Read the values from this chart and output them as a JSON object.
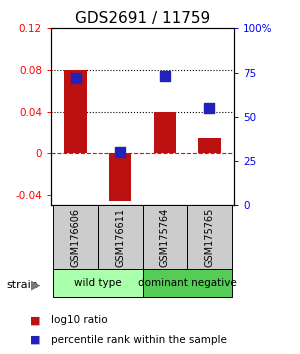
{
  "title": "GDS2691 / 11759",
  "samples": [
    "GSM176606",
    "GSM176611",
    "GSM175764",
    "GSM175765"
  ],
  "log10_ratio": [
    0.08,
    -0.046,
    0.04,
    0.015
  ],
  "percentile_rank": [
    0.72,
    0.3,
    0.73,
    0.55
  ],
  "groups": [
    {
      "label": "wild type",
      "color": "#aaffaa"
    },
    {
      "label": "dominant negative",
      "color": "#55cc55"
    }
  ],
  "group_sample_counts": [
    2,
    2
  ],
  "ylim_left": [
    -0.05,
    0.12
  ],
  "ylim_right": [
    0.0,
    1.0
  ],
  "yticks_left": [
    -0.04,
    0.0,
    0.04,
    0.08,
    0.12
  ],
  "ytick_labels_left": [
    "-0.04",
    "0",
    "0.04",
    "0.08",
    "0.12"
  ],
  "yticks_right": [
    0.0,
    0.25,
    0.5,
    0.75,
    1.0
  ],
  "ytick_labels_right": [
    "0",
    "25",
    "50",
    "75",
    "100%"
  ],
  "hlines_dotted": [
    0.04,
    0.08
  ],
  "hline_dashed": 0.0,
  "bar_color": "#bb1111",
  "dot_color": "#2222bb",
  "bar_width": 0.5,
  "dot_size": 55,
  "strain_label": "strain",
  "legend_bar_label": "log10 ratio",
  "legend_dot_label": "percentile rank within the sample",
  "sample_box_color": "#cccccc",
  "title_fontsize": 11,
  "tick_fontsize": 7.5,
  "sample_fontsize": 7,
  "group_fontsize": 7.5,
  "legend_fontsize": 7.5
}
